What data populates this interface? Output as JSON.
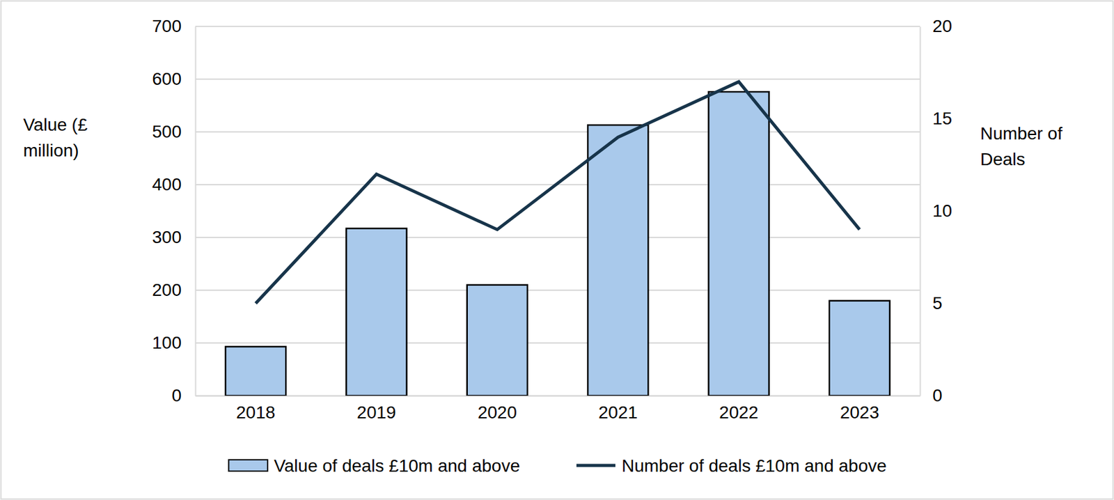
{
  "chart_data": {
    "type": "bar",
    "categories": [
      "2018",
      "2019",
      "2020",
      "2021",
      "2022",
      "2023"
    ],
    "series": [
      {
        "name": "Value of deals £10m and above",
        "type": "bar",
        "color": "#a9c9eb",
        "values": [
          93,
          317,
          210,
          513,
          576,
          180
        ]
      },
      {
        "name": "Number of deals £10m and above",
        "type": "line",
        "color": "#17344a",
        "axis": "y2",
        "values": [
          5,
          12,
          9,
          14,
          17,
          9
        ]
      }
    ],
    "ylabel": "Value (£ million)",
    "y2label": "Number of Deals",
    "ylim": [
      0,
      700
    ],
    "yticks": [
      0,
      100,
      200,
      300,
      400,
      500,
      600,
      700
    ],
    "y2lim": [
      0,
      20
    ],
    "y2ticks": [
      0,
      5,
      10,
      15,
      20
    ],
    "grid": true,
    "legend": "bottom"
  }
}
